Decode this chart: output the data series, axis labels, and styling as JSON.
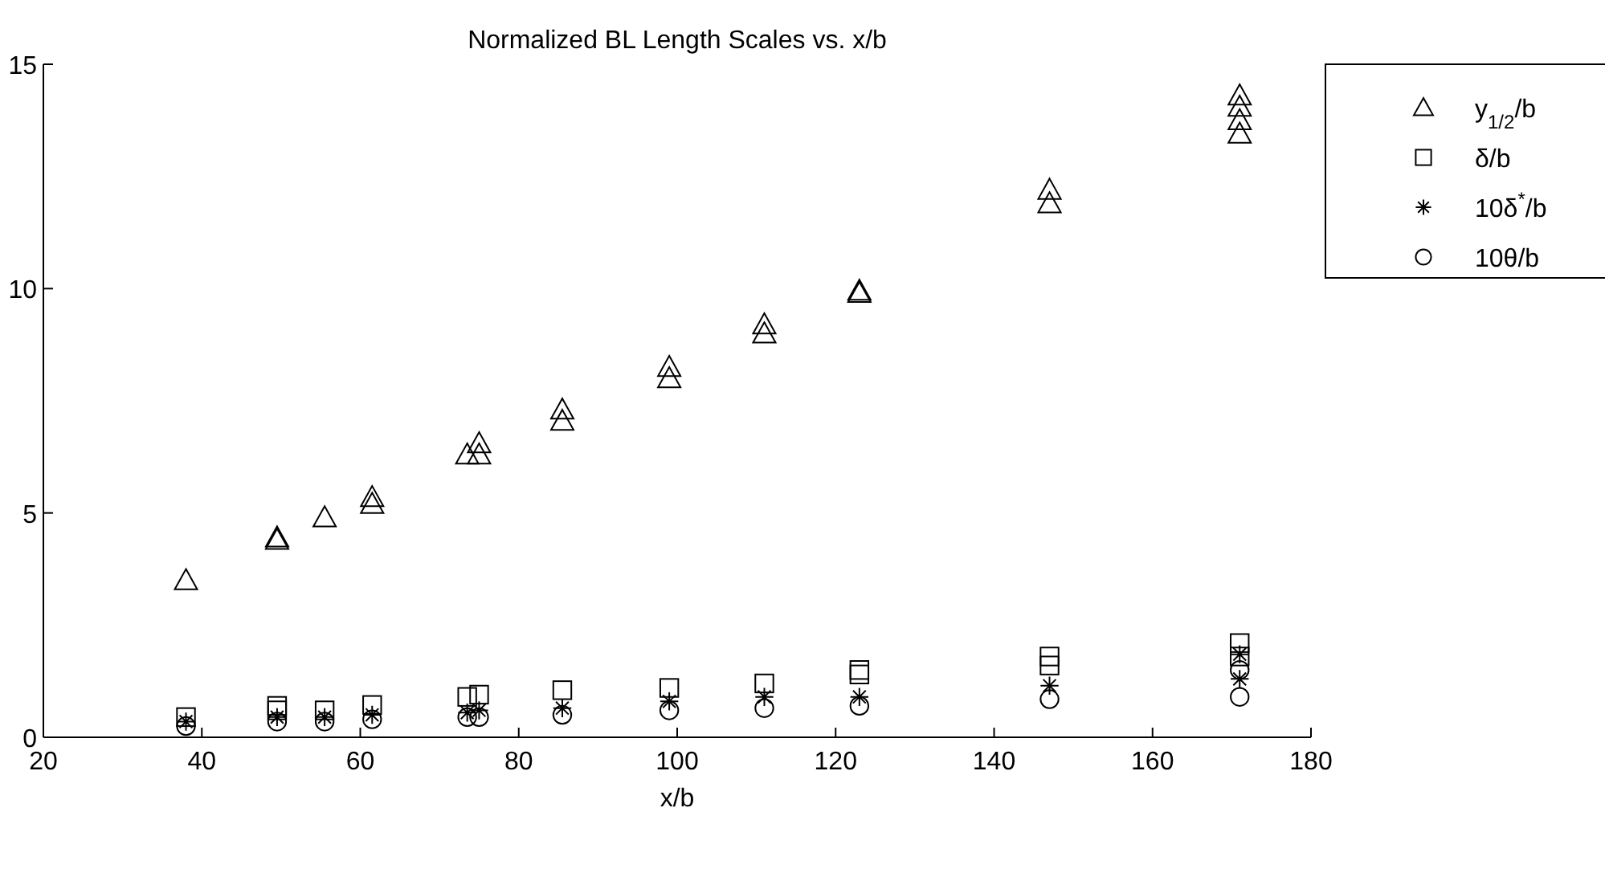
{
  "chart_data": {
    "type": "scatter",
    "title": "Normalized BL Length Scales vs. x/b",
    "xlabel": "x/b",
    "xlim": [
      20,
      180
    ],
    "xticks": [
      20,
      40,
      60,
      80,
      100,
      120,
      140,
      160,
      180
    ],
    "ylim": [
      0,
      15
    ],
    "yticks": [
      0,
      5,
      10,
      15
    ],
    "grid": false,
    "legend": "top right",
    "series": [
      {
        "name": "y$_{1/2}$/b",
        "color": "#000000",
        "marker": "triangle",
        "x": [
          38,
          49.5,
          49.5,
          55.5,
          61.5,
          61.5,
          73.5,
          75,
          75,
          85.5,
          85.5,
          99,
          99,
          111,
          111,
          123,
          123,
          147,
          147,
          171,
          171,
          171,
          171
        ],
        "values": [
          3.5,
          4.4,
          4.45,
          4.9,
          5.2,
          5.35,
          6.3,
          6.3,
          6.55,
          7.05,
          7.3,
          8.0,
          8.25,
          9.0,
          9.2,
          9.9,
          9.95,
          11.9,
          12.2,
          13.45,
          13.75,
          14.05,
          14.3
        ]
      },
      {
        "name": "δ/b",
        "color": "#000000",
        "marker": "square",
        "x": [
          38,
          49.5,
          49.5,
          55.5,
          61.5,
          73.5,
          75,
          85.5,
          99,
          111,
          123,
          123,
          147,
          147,
          171,
          171
        ],
        "values": [
          0.45,
          0.7,
          0.6,
          0.6,
          0.72,
          0.9,
          0.95,
          1.05,
          1.1,
          1.2,
          1.4,
          1.5,
          1.6,
          1.8,
          1.8,
          2.1
        ]
      },
      {
        "name": "10δ$^{*}$/b",
        "color": "#000000",
        "marker": "cross",
        "x": [
          38,
          49.5,
          55.5,
          61.5,
          73.5,
          75,
          85.5,
          99,
          111,
          123,
          147,
          171,
          171
        ],
        "values": [
          0.35,
          0.45,
          0.45,
          0.5,
          0.55,
          0.6,
          0.65,
          0.8,
          0.9,
          0.9,
          1.15,
          1.3,
          1.85
        ]
      },
      {
        "name": "10θ/b",
        "color": "#000000",
        "marker": "circle",
        "x": [
          38,
          49.5,
          55.5,
          61.5,
          73.5,
          75,
          85.5,
          99,
          111,
          123,
          147,
          171,
          171
        ],
        "values": [
          0.25,
          0.35,
          0.35,
          0.4,
          0.45,
          0.45,
          0.5,
          0.6,
          0.65,
          0.7,
          0.85,
          0.9,
          1.5
        ]
      }
    ]
  }
}
